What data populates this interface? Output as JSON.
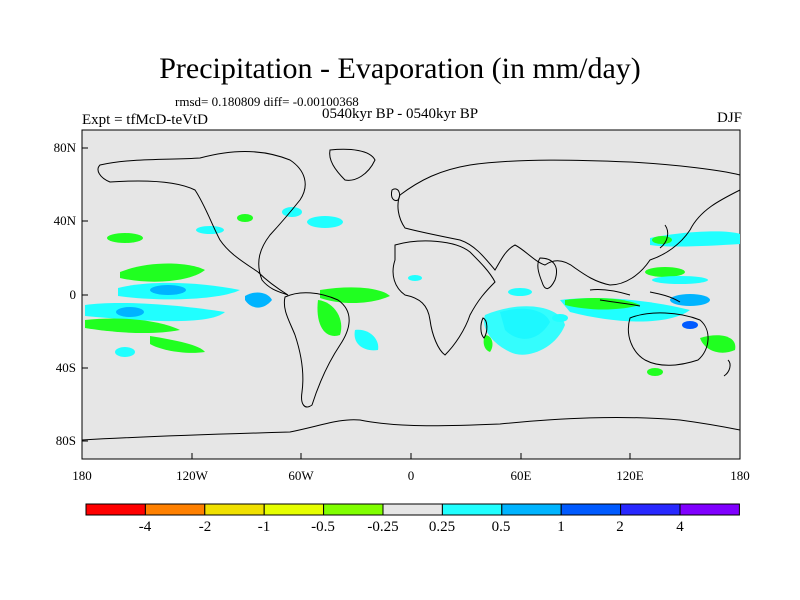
{
  "title": "Precipitation - Evaporation (in mm/day)",
  "stats": "rmsd= 0.180809 diff= -0.00100368",
  "left_label": "Expt = tfMcD-teVtD",
  "center_label": "0540kyr BP - 0540kyr BP",
  "right_label": "DJF",
  "map": {
    "projection": "cylindrical equidistant",
    "lon_range": [
      -180,
      180
    ],
    "lat_range": [
      -90,
      90
    ],
    "background_color": "#e6e6e6",
    "y_ticks": [
      "80N",
      "40N",
      "0",
      "40S",
      "80S"
    ],
    "x_ticks": [
      "180",
      "120W",
      "60W",
      "0",
      "60E",
      "120E",
      "180"
    ]
  },
  "colorbar": {
    "colors": [
      "#ff0000",
      "#ff8000",
      "#f0e000",
      "#e6ff00",
      "#80ff00",
      "#20ff20",
      "#e6e6e6",
      "#20ffff",
      "#00b4ff",
      "#005aff",
      "#2828ff",
      "#8000ff"
    ],
    "labels": [
      "-4",
      "-2",
      "-1",
      "-0.5",
      "-0.25",
      "0.25",
      "0.5",
      "1",
      "2",
      "4"
    ]
  }
}
